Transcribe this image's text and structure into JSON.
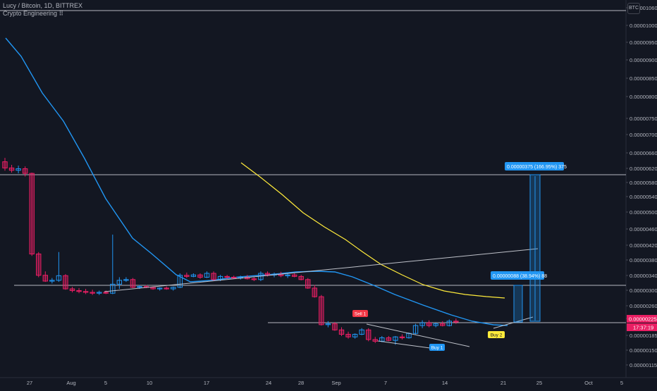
{
  "header": {
    "symbol_line": "Lucy / Bitcoin, 1D, BITTREX",
    "indicator_line": "Crypto Engineering ⠿",
    "currency_badge": "BTC"
  },
  "price_axis": {
    "labels": [
      "0.00001060",
      "0.00001000",
      "0.00000950",
      "0.00000900",
      "0.00000850",
      "0.00000800",
      "0.00000750",
      "0.00000700",
      "0.00000660",
      "0.00000620",
      "0.00000580",
      "0.00000540",
      "0.00000500",
      "0.00000460",
      "0.00000420",
      "0.00000380",
      "0.00000340",
      "0.00000300",
      "0.00000260",
      "0.00000225",
      "0.00000185",
      "0.00000150",
      "0.00000115"
    ],
    "current_price": "0.00000225",
    "countdown": "17:37:19"
  },
  "time_axis": {
    "labels": [
      "27",
      "Aug",
      "5",
      "10",
      "17",
      "24",
      "28",
      "Sep",
      "7",
      "14",
      "21",
      "25",
      "Oct",
      "5"
    ]
  },
  "colors": {
    "background": "#131722",
    "up": "#2196f3",
    "down": "#e91e63",
    "ma_blue": "#2196f3",
    "ma_yellow": "#ffeb3b",
    "lines": "#d1d4dc",
    "sell": "#f23645",
    "buy": "#2196f3",
    "buy2": "#ffeb3b",
    "price_tag": "#e91e63"
  },
  "signals": [
    {
      "label": "Sell 1",
      "type": "sell"
    },
    {
      "label": "Buy 1",
      "type": "buy"
    },
    {
      "label": "Buy 2",
      "type": "buy2"
    }
  ],
  "measurements": [
    {
      "text": "0.00000375 (166.95%) 375"
    },
    {
      "text": "0.00000088 (38.94%) 88"
    }
  ],
  "chart_data": {
    "type": "candlestick",
    "symbol": "Lucy / Bitcoin",
    "interval": "1D",
    "exchange": "BITTREX",
    "y_unit": "BTC",
    "candles": [
      {
        "x": "Jul 25",
        "o": 628,
        "h": 638,
        "l": 605,
        "c": 612
      },
      {
        "x": "Jul 26",
        "o": 612,
        "h": 620,
        "l": 600,
        "c": 606
      },
      {
        "x": "Jul 27",
        "o": 606,
        "h": 618,
        "l": 598,
        "c": 610
      },
      {
        "x": "Jul 28",
        "o": 610,
        "h": 616,
        "l": 590,
        "c": 598
      },
      {
        "x": "Jul 29",
        "o": 598,
        "h": 600,
        "l": 385,
        "c": 390
      },
      {
        "x": "Jul 30",
        "o": 390,
        "h": 395,
        "l": 330,
        "c": 335
      },
      {
        "x": "Jul 31",
        "o": 335,
        "h": 345,
        "l": 318,
        "c": 320
      },
      {
        "x": "Aug 1",
        "o": 320,
        "h": 328,
        "l": 314,
        "c": 322
      },
      {
        "x": "Aug 2",
        "o": 322,
        "h": 395,
        "l": 318,
        "c": 334
      },
      {
        "x": "Aug 3",
        "o": 334,
        "h": 338,
        "l": 298,
        "c": 300
      },
      {
        "x": "Aug 4",
        "o": 300,
        "h": 305,
        "l": 292,
        "c": 296
      },
      {
        "x": "Aug 5",
        "o": 296,
        "h": 302,
        "l": 290,
        "c": 294
      },
      {
        "x": "Aug 6",
        "o": 294,
        "h": 300,
        "l": 288,
        "c": 292
      },
      {
        "x": "Aug 7",
        "o": 292,
        "h": 298,
        "l": 286,
        "c": 290
      },
      {
        "x": "Aug 8",
        "o": 290,
        "h": 296,
        "l": 286,
        "c": 292
      },
      {
        "x": "Aug 9",
        "o": 292,
        "h": 296,
        "l": 288,
        "c": 290
      },
      {
        "x": "Aug 10",
        "o": 290,
        "h": 440,
        "l": 288,
        "c": 312
      },
      {
        "x": "Aug 11",
        "o": 312,
        "h": 330,
        "l": 300,
        "c": 322
      },
      {
        "x": "Aug 12",
        "o": 322,
        "h": 330,
        "l": 318,
        "c": 324
      },
      {
        "x": "Aug 13",
        "o": 324,
        "h": 328,
        "l": 302,
        "c": 304
      },
      {
        "x": "Aug 14",
        "o": 304,
        "h": 310,
        "l": 300,
        "c": 306
      },
      {
        "x": "Aug 15",
        "o": 306,
        "h": 310,
        "l": 302,
        "c": 304
      },
      {
        "x": "Aug 16",
        "o": 304,
        "h": 306,
        "l": 298,
        "c": 300
      },
      {
        "x": "Aug 17",
        "o": 300,
        "h": 304,
        "l": 296,
        "c": 302
      },
      {
        "x": "Aug 18",
        "o": 302,
        "h": 306,
        "l": 298,
        "c": 300
      },
      {
        "x": "Aug 19",
        "o": 300,
        "h": 306,
        "l": 296,
        "c": 304
      },
      {
        "x": "Aug 20",
        "o": 304,
        "h": 340,
        "l": 302,
        "c": 335
      },
      {
        "x": "Aug 21",
        "o": 335,
        "h": 342,
        "l": 328,
        "c": 332
      },
      {
        "x": "Aug 22",
        "o": 332,
        "h": 340,
        "l": 330,
        "c": 336
      },
      {
        "x": "Aug 23",
        "o": 336,
        "h": 340,
        "l": 326,
        "c": 330
      },
      {
        "x": "Aug 24",
        "o": 330,
        "h": 345,
        "l": 328,
        "c": 340
      },
      {
        "x": "Aug 25",
        "o": 340,
        "h": 345,
        "l": 320,
        "c": 324
      },
      {
        "x": "Aug 26",
        "o": 324,
        "h": 336,
        "l": 320,
        "c": 332
      },
      {
        "x": "Aug 27",
        "o": 332,
        "h": 336,
        "l": 326,
        "c": 330
      },
      {
        "x": "Aug 28",
        "o": 330,
        "h": 334,
        "l": 326,
        "c": 328
      },
      {
        "x": "Aug 29",
        "o": 328,
        "h": 334,
        "l": 324,
        "c": 330
      },
      {
        "x": "Aug 30",
        "o": 330,
        "h": 336,
        "l": 324,
        "c": 326
      },
      {
        "x": "Aug 31",
        "o": 326,
        "h": 330,
        "l": 320,
        "c": 324
      },
      {
        "x": "Sep 1",
        "o": 324,
        "h": 345,
        "l": 320,
        "c": 340
      },
      {
        "x": "Sep 2",
        "o": 340,
        "h": 345,
        "l": 332,
        "c": 336
      },
      {
        "x": "Sep 3",
        "o": 336,
        "h": 342,
        "l": 330,
        "c": 338
      },
      {
        "x": "Sep 4",
        "o": 338,
        "h": 344,
        "l": 330,
        "c": 334
      },
      {
        "x": "Sep 5",
        "o": 334,
        "h": 340,
        "l": 328,
        "c": 336
      },
      {
        "x": "Sep 6",
        "o": 336,
        "h": 340,
        "l": 330,
        "c": 332
      },
      {
        "x": "Sep 7",
        "o": 332,
        "h": 336,
        "l": 322,
        "c": 324
      },
      {
        "x": "Sep 8",
        "o": 324,
        "h": 328,
        "l": 300,
        "c": 302
      },
      {
        "x": "Sep 9",
        "o": 302,
        "h": 310,
        "l": 280,
        "c": 282
      },
      {
        "x": "Sep 10",
        "o": 282,
        "h": 286,
        "l": 216,
        "c": 218
      },
      {
        "x": "Sep 11",
        "o": 218,
        "h": 226,
        "l": 212,
        "c": 220
      },
      {
        "x": "Sep 12",
        "o": 220,
        "h": 224,
        "l": 204,
        "c": 206
      },
      {
        "x": "Sep 13",
        "o": 206,
        "h": 212,
        "l": 192,
        "c": 196
      },
      {
        "x": "Sep 14",
        "o": 196,
        "h": 202,
        "l": 186,
        "c": 190
      },
      {
        "x": "Sep 15",
        "o": 190,
        "h": 198,
        "l": 186,
        "c": 196
      },
      {
        "x": "Sep 16",
        "o": 196,
        "h": 210,
        "l": 194,
        "c": 206
      },
      {
        "x": "Sep 17",
        "o": 206,
        "h": 210,
        "l": 180,
        "c": 184
      },
      {
        "x": "Sep 18",
        "o": 184,
        "h": 190,
        "l": 176,
        "c": 180
      },
      {
        "x": "Sep 19",
        "o": 180,
        "h": 192,
        "l": 178,
        "c": 188
      },
      {
        "x": "Sep 20",
        "o": 188,
        "h": 192,
        "l": 180,
        "c": 182
      },
      {
        "x": "Sep 21",
        "o": 182,
        "h": 192,
        "l": 172,
        "c": 190
      },
      {
        "x": "Sep 22",
        "o": 190,
        "h": 196,
        "l": 184,
        "c": 188
      },
      {
        "x": "Sep 23",
        "o": 188,
        "h": 200,
        "l": 186,
        "c": 198
      },
      {
        "x": "Sep 24",
        "o": 198,
        "h": 220,
        "l": 196,
        "c": 216
      },
      {
        "x": "Sep 25",
        "o": 216,
        "h": 228,
        "l": 210,
        "c": 222
      },
      {
        "x": "Sep 26",
        "o": 222,
        "h": 228,
        "l": 212,
        "c": 216
      },
      {
        "x": "Sep 27",
        "o": 216,
        "h": 222,
        "l": 212,
        "c": 220
      },
      {
        "x": "Sep 28",
        "o": 220,
        "h": 226,
        "l": 214,
        "c": 216
      },
      {
        "x": "Sep 29",
        "o": 216,
        "h": 230,
        "l": 214,
        "c": 226
      },
      {
        "x": "Sep 30",
        "o": 226,
        "h": 232,
        "l": 220,
        "c": 224
      }
    ],
    "moving_averages": [
      {
        "color": "#2196f3",
        "points": [
          [
            0,
            960
          ],
          [
            5,
            900
          ],
          [
            10,
            780
          ],
          [
            15,
            640
          ],
          [
            20,
            480
          ],
          [
            24,
            390
          ],
          [
            28,
            340
          ],
          [
            32,
            315
          ],
          [
            36,
            308
          ],
          [
            40,
            312
          ],
          [
            44,
            318
          ],
          [
            48,
            328
          ],
          [
            52,
            330
          ],
          [
            56,
            322
          ],
          [
            60,
            290
          ],
          [
            64,
            265
          ],
          [
            68,
            242
          ],
          [
            72,
            222
          ],
          [
            76,
            210
          ],
          [
            78,
            212
          ],
          [
            82,
            226
          ]
        ]
      },
      {
        "color": "#ffeb3b",
        "points": [
          [
            44,
            630
          ],
          [
            50,
            560
          ],
          [
            56,
            480
          ],
          [
            60,
            420
          ],
          [
            64,
            370
          ],
          [
            68,
            330
          ],
          [
            72,
            300
          ],
          [
            76,
            285
          ],
          [
            80,
            280
          ]
        ]
      }
    ],
    "horizontal_lines": [
      1060,
      590,
      310,
      225
    ],
    "trend_lines": [
      {
        "from": [
          14,
          294
        ],
        "to": [
          86,
          410
        ]
      },
      {
        "from": [
          60,
          180
        ],
        "to": [
          74,
          160
        ]
      },
      {
        "from": [
          58,
          222
        ],
        "to": [
          74,
          175
        ]
      },
      {
        "from": [
          78,
          220
        ],
        "to": [
          86,
          232
        ]
      }
    ]
  }
}
